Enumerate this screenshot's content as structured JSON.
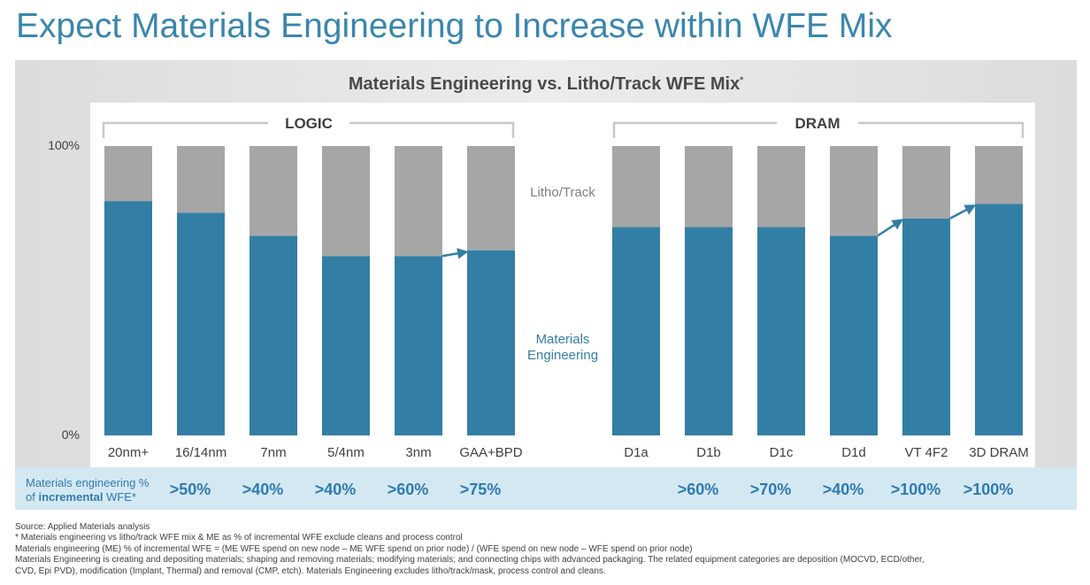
{
  "header": {
    "title": "Expect Materials Engineering to Increase within WFE Mix"
  },
  "chart_data": {
    "type": "bar",
    "stacked": true,
    "title": "Materials Engineering vs. Litho/Track WFE Mix",
    "title_mark": "*",
    "yaxis": {
      "ticks": [
        "100%",
        "0%"
      ],
      "range": [
        0,
        100
      ]
    },
    "groups": [
      {
        "name": "LOGIC",
        "categories": [
          "20nm+",
          "16/14nm",
          "7nm",
          "5/4nm",
          "3nm",
          "GAA+BPD"
        ]
      },
      {
        "name": "DRAM",
        "categories": [
          "D1a",
          "D1b",
          "D1c",
          "D1d",
          "VT 4F2",
          "3D DRAM"
        ]
      }
    ],
    "categories": [
      "20nm+",
      "16/14nm",
      "7nm",
      "5/4nm",
      "3nm",
      "GAA+BPD",
      "D1a",
      "D1b",
      "D1c",
      "D1d",
      "VT 4F2",
      "3D DRAM"
    ],
    "series": [
      {
        "name": "Materials Engineering",
        "label_lines": [
          "Materials",
          "Engineering"
        ],
        "color": "#337ea5",
        "values": [
          81,
          77,
          69,
          62,
          62,
          64,
          72,
          72,
          72,
          69,
          75,
          80
        ]
      },
      {
        "name": "Litho/Track",
        "label_lines": [
          "Litho/Track"
        ],
        "color": "#a6a6a6",
        "values": [
          19,
          23,
          31,
          38,
          38,
          36,
          28,
          28,
          28,
          31,
          25,
          20
        ]
      }
    ],
    "arrows": [
      {
        "from": "3nm",
        "to": "GAA+BPD"
      },
      {
        "from": "D1d",
        "to": "VT 4F2"
      },
      {
        "from": "VT 4F2",
        "to": "3D DRAM"
      }
    ],
    "incremental_row": {
      "label_prefix": "Materials engineering %",
      "label_mid": "of ",
      "label_bold": "incremental",
      "label_suffix": " WFE*",
      "values": [
        ">50%",
        ">40%",
        ">40%",
        ">60%",
        ">75%",
        "",
        ">60%",
        ">70%",
        ">40%",
        ">100%",
        ">100%"
      ]
    }
  },
  "footnotes": [
    "Source: Applied Materials analysis",
    "* Materials engineering vs litho/track WFE mix & ME as % of incremental WFE exclude cleans and process control",
    "Materials engineering (ME) % of incremental WFE = (ME WFE spend on new node – ME WFE spend on prior node) / (WFE spend on new node – WFE spend on prior node)",
    "Materials Engineering is creating and depositing materials; shaping and removing materials; modifying materials; and connecting chips with advanced packaging. The related equipment categories are deposition (MOCVD, ECD/other,",
    "CVD, Epi PVD), modification (Implant, Thermal) and removal (CMP, etch). Materials Engineering excludes litho/track/mask, process control and cleans."
  ],
  "colors": {
    "title": "#3a86ad",
    "me_bar": "#337ea5",
    "litho_bar": "#a6a6a6",
    "row_band": "#d4e8f2",
    "row_text": "#2e7bb0"
  }
}
